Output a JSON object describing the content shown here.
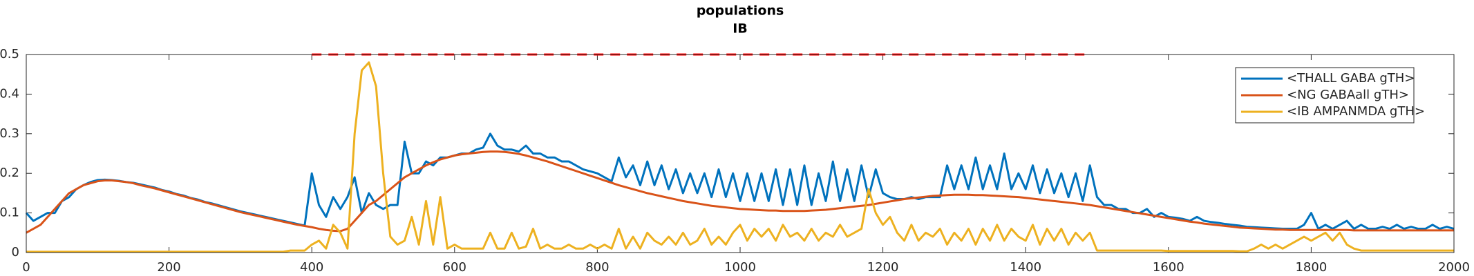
{
  "chart_data": {
    "type": "line",
    "title": "populations",
    "subtitle": "IB",
    "x": [
      0,
      10,
      20,
      30,
      40,
      50,
      60,
      70,
      80,
      90,
      100,
      110,
      120,
      130,
      140,
      150,
      160,
      170,
      180,
      190,
      200,
      210,
      220,
      230,
      240,
      250,
      260,
      270,
      280,
      290,
      300,
      310,
      320,
      330,
      340,
      350,
      360,
      370,
      380,
      390,
      400,
      410,
      420,
      430,
      440,
      450,
      460,
      470,
      480,
      490,
      500,
      510,
      520,
      530,
      540,
      550,
      560,
      570,
      580,
      590,
      600,
      610,
      620,
      630,
      640,
      650,
      660,
      670,
      680,
      690,
      700,
      710,
      720,
      730,
      740,
      750,
      760,
      770,
      780,
      790,
      800,
      810,
      820,
      830,
      840,
      850,
      860,
      870,
      880,
      890,
      900,
      910,
      920,
      930,
      940,
      950,
      960,
      970,
      980,
      990,
      1000,
      1010,
      1020,
      1030,
      1040,
      1050,
      1060,
      1070,
      1080,
      1090,
      1100,
      1110,
      1120,
      1130,
      1140,
      1150,
      1160,
      1170,
      1180,
      1190,
      1200,
      1210,
      1220,
      1230,
      1240,
      1250,
      1260,
      1270,
      1280,
      1290,
      1300,
      1310,
      1320,
      1330,
      1340,
      1350,
      1360,
      1370,
      1380,
      1390,
      1400,
      1410,
      1420,
      1430,
      1440,
      1450,
      1460,
      1470,
      1480,
      1490,
      1500,
      1510,
      1520,
      1530,
      1540,
      1550,
      1560,
      1570,
      1580,
      1590,
      1600,
      1610,
      1620,
      1630,
      1640,
      1650,
      1660,
      1670,
      1680,
      1690,
      1700,
      1710,
      1720,
      1730,
      1740,
      1750,
      1760,
      1770,
      1780,
      1790,
      1800,
      1810,
      1820,
      1830,
      1840,
      1850,
      1860,
      1870,
      1880,
      1890,
      1900,
      1910,
      1920,
      1930,
      1940,
      1950,
      1960,
      1970,
      1980,
      1990,
      2000
    ],
    "series": [
      {
        "name": "<THALL GABA gTH>",
        "color": "#0072bd",
        "values": [
          0.1,
          0.08,
          0.09,
          0.1,
          0.1,
          0.13,
          0.14,
          0.16,
          0.17,
          0.178,
          0.183,
          0.184,
          0.183,
          0.181,
          0.178,
          0.176,
          0.172,
          0.168,
          0.164,
          0.158,
          0.154,
          0.148,
          0.144,
          0.138,
          0.134,
          0.128,
          0.124,
          0.119,
          0.114,
          0.109,
          0.104,
          0.1,
          0.096,
          0.092,
          0.088,
          0.084,
          0.08,
          0.076,
          0.072,
          0.068,
          0.2,
          0.12,
          0.09,
          0.14,
          0.11,
          0.14,
          0.19,
          0.1,
          0.15,
          0.12,
          0.11,
          0.12,
          0.12,
          0.28,
          0.2,
          0.2,
          0.23,
          0.22,
          0.24,
          0.24,
          0.245,
          0.25,
          0.25,
          0.26,
          0.265,
          0.3,
          0.27,
          0.26,
          0.26,
          0.255,
          0.27,
          0.25,
          0.25,
          0.24,
          0.24,
          0.23,
          0.23,
          0.22,
          0.21,
          0.205,
          0.2,
          0.19,
          0.18,
          0.24,
          0.19,
          0.22,
          0.17,
          0.23,
          0.17,
          0.22,
          0.16,
          0.21,
          0.15,
          0.2,
          0.15,
          0.2,
          0.14,
          0.21,
          0.14,
          0.2,
          0.13,
          0.2,
          0.13,
          0.2,
          0.13,
          0.21,
          0.12,
          0.21,
          0.12,
          0.22,
          0.12,
          0.2,
          0.13,
          0.23,
          0.13,
          0.21,
          0.13,
          0.22,
          0.14,
          0.21,
          0.15,
          0.14,
          0.135,
          0.135,
          0.14,
          0.135,
          0.14,
          0.14,
          0.14,
          0.22,
          0.16,
          0.22,
          0.16,
          0.24,
          0.16,
          0.22,
          0.16,
          0.25,
          0.16,
          0.2,
          0.16,
          0.22,
          0.15,
          0.21,
          0.15,
          0.2,
          0.14,
          0.2,
          0.13,
          0.22,
          0.14,
          0.12,
          0.12,
          0.11,
          0.11,
          0.1,
          0.1,
          0.11,
          0.09,
          0.1,
          0.09,
          0.088,
          0.085,
          0.08,
          0.09,
          0.08,
          0.077,
          0.075,
          0.072,
          0.07,
          0.068,
          0.065,
          0.064,
          0.063,
          0.062,
          0.061,
          0.06,
          0.06,
          0.06,
          0.07,
          0.1,
          0.06,
          0.07,
          0.06,
          0.07,
          0.08,
          0.06,
          0.07,
          0.06,
          0.06,
          0.065,
          0.06,
          0.07,
          0.06,
          0.065,
          0.06,
          0.06,
          0.07,
          0.06,
          0.065,
          0.06
        ]
      },
      {
        "name": "<NG GABAall gTH>",
        "color": "#d95319",
        "values": [
          0.05,
          0.06,
          0.07,
          0.09,
          0.11,
          0.13,
          0.15,
          0.16,
          0.17,
          0.175,
          0.18,
          0.182,
          0.182,
          0.18,
          0.178,
          0.175,
          0.17,
          0.166,
          0.162,
          0.157,
          0.152,
          0.147,
          0.142,
          0.137,
          0.132,
          0.127,
          0.122,
          0.117,
          0.112,
          0.107,
          0.102,
          0.098,
          0.094,
          0.09,
          0.086,
          0.082,
          0.078,
          0.074,
          0.07,
          0.067,
          0.064,
          0.06,
          0.057,
          0.055,
          0.054,
          0.06,
          0.08,
          0.1,
          0.12,
          0.13,
          0.145,
          0.16,
          0.175,
          0.19,
          0.2,
          0.21,
          0.22,
          0.228,
          0.235,
          0.24,
          0.245,
          0.248,
          0.25,
          0.252,
          0.254,
          0.255,
          0.255,
          0.254,
          0.252,
          0.249,
          0.245,
          0.24,
          0.235,
          0.23,
          0.224,
          0.218,
          0.212,
          0.206,
          0.2,
          0.194,
          0.188,
          0.182,
          0.176,
          0.17,
          0.165,
          0.16,
          0.155,
          0.15,
          0.146,
          0.142,
          0.138,
          0.134,
          0.13,
          0.127,
          0.124,
          0.121,
          0.118,
          0.116,
          0.114,
          0.112,
          0.11,
          0.109,
          0.108,
          0.107,
          0.106,
          0.106,
          0.105,
          0.105,
          0.105,
          0.105,
          0.106,
          0.107,
          0.108,
          0.11,
          0.112,
          0.114,
          0.116,
          0.118,
          0.12,
          0.123,
          0.126,
          0.129,
          0.132,
          0.135,
          0.137,
          0.139,
          0.141,
          0.143,
          0.144,
          0.145,
          0.146,
          0.146,
          0.146,
          0.145,
          0.145,
          0.144,
          0.143,
          0.142,
          0.141,
          0.14,
          0.138,
          0.136,
          0.134,
          0.132,
          0.13,
          0.128,
          0.126,
          0.124,
          0.122,
          0.12,
          0.117,
          0.114,
          0.111,
          0.108,
          0.105,
          0.102,
          0.099,
          0.096,
          0.093,
          0.09,
          0.087,
          0.084,
          0.081,
          0.078,
          0.076,
          0.073,
          0.071,
          0.069,
          0.067,
          0.065,
          0.063,
          0.062,
          0.061,
          0.06,
          0.059,
          0.058,
          0.058,
          0.057,
          0.057,
          0.057,
          0.057,
          0.057,
          0.057,
          0.057,
          0.057,
          0.057,
          0.056,
          0.056,
          0.056,
          0.056,
          0.056,
          0.056,
          0.056,
          0.056,
          0.056,
          0.056,
          0.056,
          0.056,
          0.056,
          0.056,
          0.056
        ]
      },
      {
        "name": "<IB AMPANMDA gTH>",
        "color": "#edb120",
        "values": [
          0.002,
          0.002,
          0.002,
          0.002,
          0.002,
          0.002,
          0.002,
          0.002,
          0.002,
          0.002,
          0.002,
          0.002,
          0.002,
          0.002,
          0.002,
          0.002,
          0.002,
          0.002,
          0.002,
          0.002,
          0.002,
          0.002,
          0.002,
          0.002,
          0.002,
          0.002,
          0.002,
          0.002,
          0.002,
          0.002,
          0.002,
          0.002,
          0.002,
          0.002,
          0.002,
          0.002,
          0.002,
          0.005,
          0.005,
          0.005,
          0.02,
          0.03,
          0.01,
          0.07,
          0.05,
          0.01,
          0.3,
          0.46,
          0.48,
          0.42,
          0.2,
          0.04,
          0.02,
          0.03,
          0.09,
          0.02,
          0.13,
          0.02,
          0.14,
          0.01,
          0.02,
          0.01,
          0.01,
          0.01,
          0.01,
          0.05,
          0.01,
          0.01,
          0.05,
          0.01,
          0.015,
          0.06,
          0.01,
          0.02,
          0.01,
          0.01,
          0.02,
          0.01,
          0.01,
          0.02,
          0.01,
          0.02,
          0.01,
          0.06,
          0.01,
          0.04,
          0.01,
          0.05,
          0.03,
          0.02,
          0.04,
          0.02,
          0.05,
          0.02,
          0.03,
          0.06,
          0.02,
          0.04,
          0.02,
          0.05,
          0.07,
          0.03,
          0.06,
          0.04,
          0.06,
          0.03,
          0.07,
          0.04,
          0.05,
          0.03,
          0.06,
          0.03,
          0.05,
          0.04,
          0.07,
          0.04,
          0.05,
          0.06,
          0.16,
          0.1,
          0.07,
          0.09,
          0.05,
          0.03,
          0.07,
          0.03,
          0.05,
          0.04,
          0.06,
          0.02,
          0.05,
          0.03,
          0.06,
          0.02,
          0.06,
          0.03,
          0.07,
          0.03,
          0.06,
          0.04,
          0.03,
          0.07,
          0.02,
          0.06,
          0.03,
          0.06,
          0.02,
          0.05,
          0.03,
          0.05,
          0.005,
          0.005,
          0.005,
          0.005,
          0.005,
          0.005,
          0.005,
          0.005,
          0.005,
          0.005,
          0.004,
          0.004,
          0.004,
          0.004,
          0.004,
          0.004,
          0.004,
          0.004,
          0.004,
          0.004,
          0.003,
          0.003,
          0.01,
          0.02,
          0.01,
          0.02,
          0.01,
          0.02,
          0.03,
          0.04,
          0.03,
          0.04,
          0.05,
          0.03,
          0.05,
          0.02,
          0.01,
          0.005,
          0.005,
          0.005,
          0.005,
          0.005,
          0.005,
          0.005,
          0.005,
          0.005,
          0.005,
          0.005,
          0.005,
          0.005,
          0.005
        ]
      }
    ],
    "reference_line": {
      "x": [
        400,
        1490
      ],
      "y": 0.5,
      "color": "#ff0000"
    },
    "xlim": [
      0,
      2000
    ],
    "xticks": [
      0,
      200,
      400,
      600,
      800,
      1000,
      1200,
      1400,
      1600,
      1800,
      2000
    ],
    "ylim": [
      0,
      0.5
    ],
    "yticks": [
      0,
      0.1,
      0.2,
      0.3,
      0.4,
      0.5
    ],
    "legend": "top-right"
  }
}
